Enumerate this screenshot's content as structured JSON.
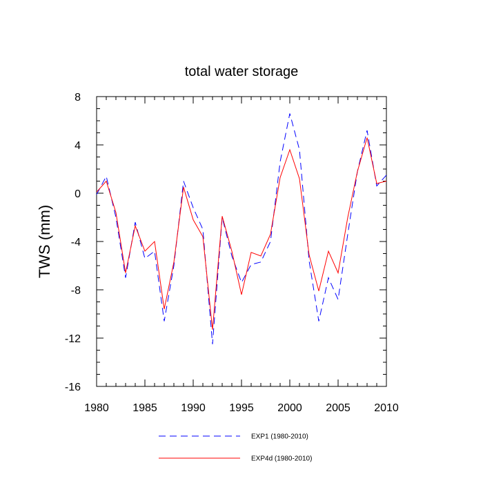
{
  "chart_data": {
    "type": "line",
    "title": "total water storage",
    "xlabel": "",
    "ylabel": "TWS  (mm)",
    "xlim": [
      1980,
      2010
    ],
    "ylim": [
      -16,
      8
    ],
    "x_ticks": [
      "1980",
      "1985",
      "1990",
      "1995",
      "2000",
      "2005",
      "2010"
    ],
    "y_ticks": [
      "8",
      "4",
      "0",
      "-4",
      "-8",
      "-12",
      "-16"
    ],
    "x": [
      1980,
      1981,
      1982,
      1983,
      1984,
      1985,
      1986,
      1987,
      1988,
      1989,
      1990,
      1991,
      1992,
      1993,
      1994,
      1995,
      1996,
      1997,
      1998,
      1999,
      2000,
      2001,
      2002,
      2003,
      2004,
      2005,
      2006,
      2007,
      2008,
      2009,
      2010
    ],
    "series": [
      {
        "name": "EXP1 (1980-2010)",
        "color": "#0000ff",
        "dash": "dashed",
        "values": [
          -0.1,
          1.4,
          -2.0,
          -7.0,
          -2.4,
          -5.4,
          -4.8,
          -10.6,
          -6.0,
          1.0,
          -1.2,
          -3.0,
          -12.5,
          -2.0,
          -5.2,
          -7.4,
          -5.9,
          -5.7,
          -4.0,
          2.6,
          6.6,
          3.6,
          -5.6,
          -10.6,
          -7.0,
          -8.8,
          -3.4,
          1.8,
          5.2,
          0.6,
          1.5
        ]
      },
      {
        "name": "EXP4d (1980-2010)",
        "color": "#ff0000",
        "dash": "solid",
        "values": [
          0.1,
          1.0,
          -1.6,
          -6.6,
          -2.7,
          -4.8,
          -4.0,
          -9.6,
          -5.7,
          0.5,
          -2.2,
          -3.6,
          -11.3,
          -1.9,
          -4.8,
          -8.4,
          -4.9,
          -5.2,
          -3.4,
          1.3,
          3.6,
          1.2,
          -5.1,
          -8.1,
          -4.8,
          -6.6,
          -2.0,
          1.8,
          4.6,
          0.8,
          1.0
        ]
      }
    ],
    "grid": false,
    "legend_position": "bottom"
  }
}
